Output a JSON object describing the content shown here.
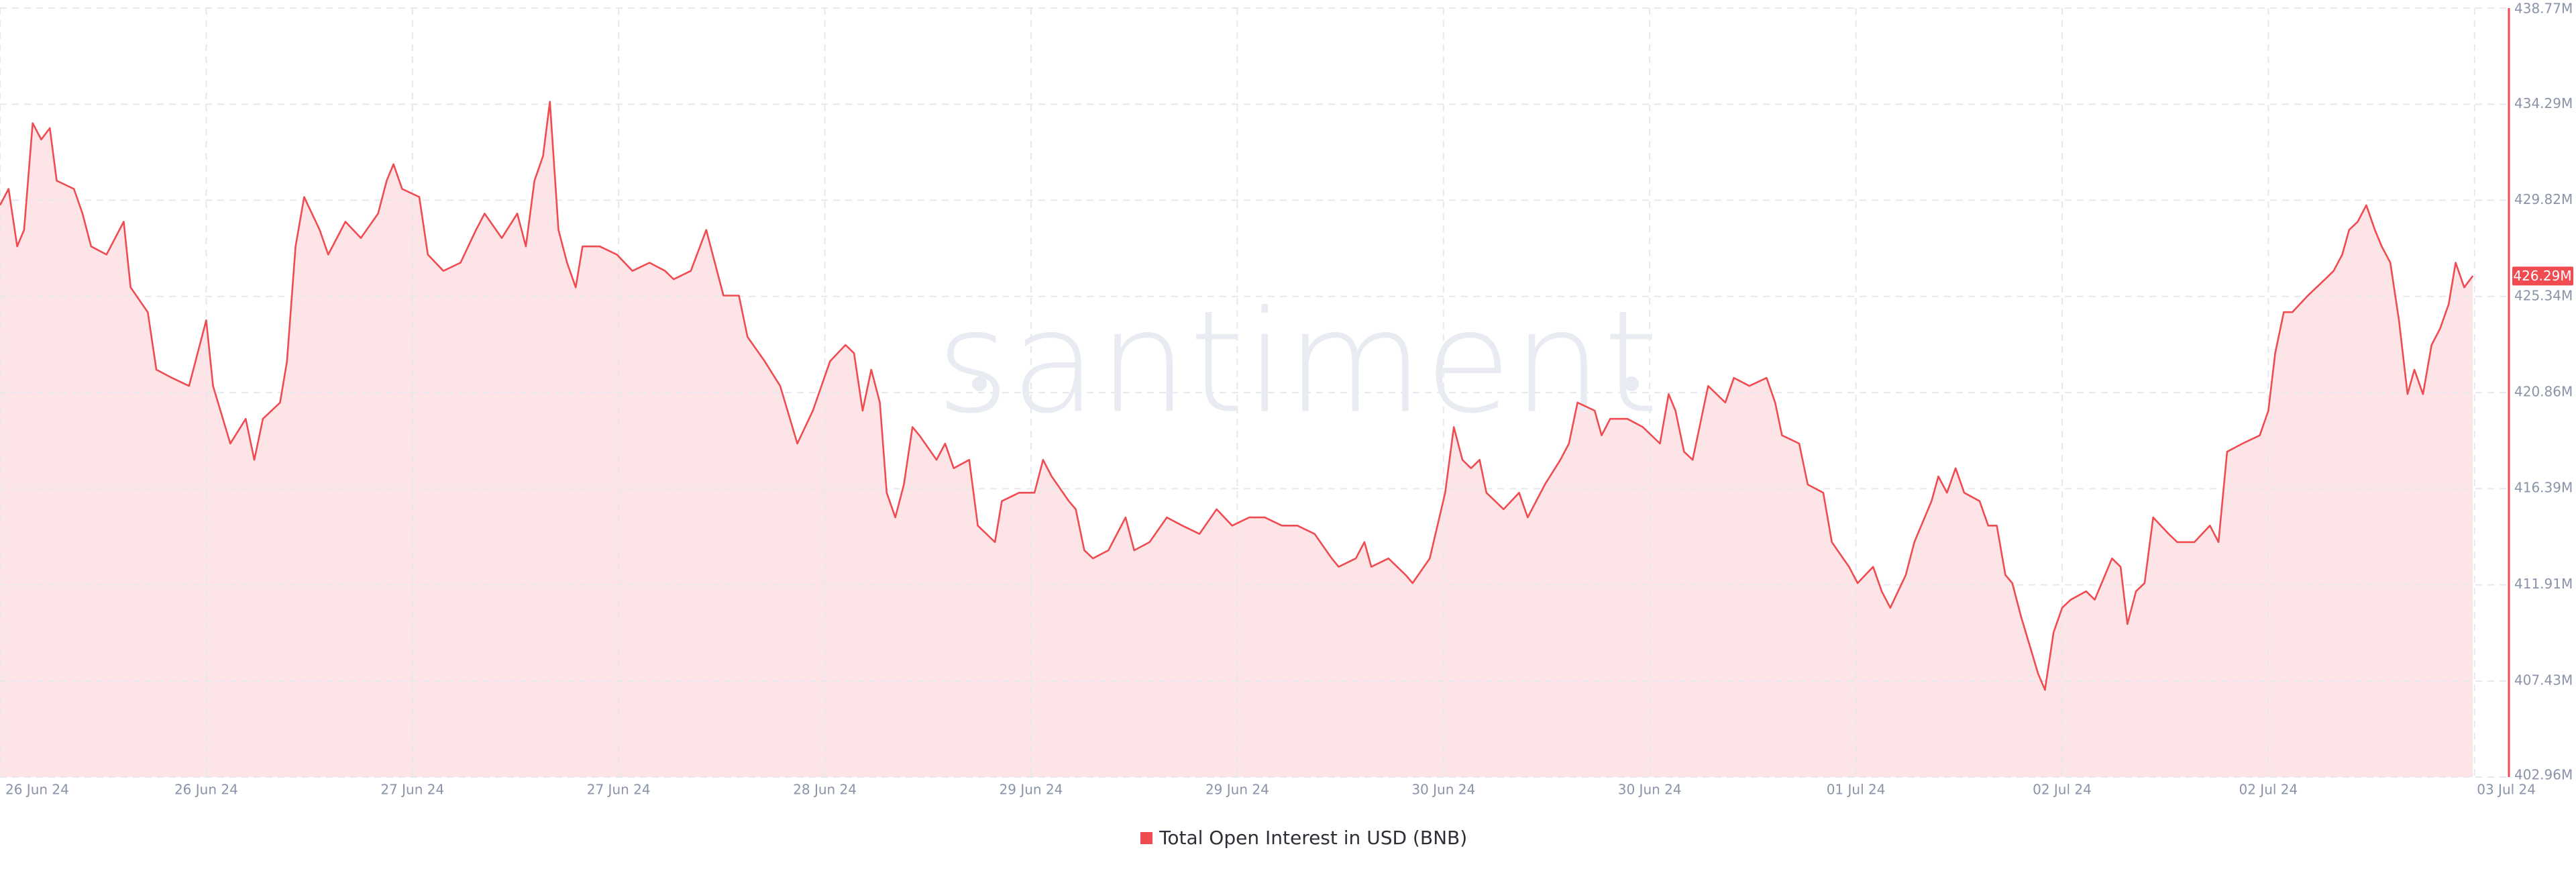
{
  "chart_data": {
    "type": "area",
    "watermark": "santiment",
    "x": [
      0,
      0.5,
      1.0,
      1.4,
      1.9,
      2.4,
      2.9,
      3.3,
      4.3,
      4.8,
      5.3,
      6.2,
      7.2,
      7.6,
      8.6,
      9.1,
      10.0,
      11.0,
      12.0,
      12.4,
      13.4,
      14.3,
      14.8,
      15.3,
      16.3,
      16.7,
      17.2,
      17.7,
      18.6,
      19.1,
      20.1,
      21.0,
      22.0,
      22.5,
      22.9,
      23.4,
      24.4,
      24.9,
      25.8,
      26.8,
      27.7,
      28.2,
      29.2,
      30.1,
      30.6,
      31.1,
      31.6,
      32.0,
      32.5,
      33.0,
      33.5,
      33.9,
      34.9,
      35.9,
      36.8,
      37.8,
      38.7,
      39.2,
      40.2,
      41.1,
      41.6,
      42.1,
      43.0,
      43.5,
      44.5,
      45.4,
      46.4,
      47.3,
      48.3,
      49.2,
      49.7,
      50.2,
      50.7,
      51.2,
      51.6,
      52.1,
      52.6,
      53.1,
      53.5,
      54.5,
      55.0,
      55.5,
      56.4,
      56.9,
      57.9,
      58.3,
      59.3,
      60.2,
      60.7,
      61.2,
      62.2,
      62.6,
      63.1,
      63.6,
      64.5,
      65.5,
      66.0,
      66.9,
      67.9,
      68.8,
      69.8,
      70.8,
      71.7,
      72.7,
      73.6,
      74.6,
      75.5,
      76.5,
      77.5,
      77.9,
      78.9,
      79.4,
      79.8,
      80.8,
      81.8,
      82.2,
      83.2,
      84.1,
      84.6,
      85.1,
      85.6,
      86.1,
      86.5,
      87.5,
      88.4,
      88.9,
      89.9,
      90.8,
      91.3,
      91.8,
      92.8,
      93.2,
      93.7,
      94.7,
      95.6,
      96.6,
      97.1,
      97.5,
      98.0,
      98.5,
      99.4,
      100.4,
      100.9,
      101.8,
      102.8,
      103.3,
      103.7,
      104.7,
      105.2,
      106.1,
      106.6,
      107.6,
      108.1,
      109.0,
      109.5,
      110.0,
      110.9,
      111.4,
      112.4,
      112.8,
      113.3,
      113.8,
      114.3,
      115.2,
      115.7,
      116.2,
      116.7,
      117.1,
      117.6,
      118.6,
      119.0,
      119.5,
      120.0,
      120.5,
      121.4,
      121.9,
      122.9,
      123.4,
      123.8,
      124.3,
      124.8,
      125.3,
      126.2,
      126.7,
      127.7,
      128.6,
      129.1,
      129.6,
      130.5,
      131.5,
      132.0,
      132.4,
      132.9,
      133.4,
      134.3,
      135.3,
      135.8,
      136.3,
      136.7,
      137.2,
      137.7,
      138.2,
      138.6,
      139.1,
      139.6,
      140.1,
      140.5,
      141.0,
      141.5,
      142.0,
      142.5,
      142.9,
      143.4,
      143.9
    ],
    "series": [
      {
        "name": "Total Open Interest in USD (BNB)",
        "color": "#ef4b51",
        "fill": "#fde4e6",
        "values": [
          429.59,
          430.35,
          427.67,
          428.44,
          433.41,
          432.65,
          433.18,
          430.73,
          430.35,
          429.2,
          427.67,
          427.29,
          428.82,
          425.76,
          424.61,
          421.93,
          421.55,
          421.17,
          424.23,
          421.17,
          418.49,
          419.64,
          417.73,
          419.64,
          420.4,
          422.32,
          427.67,
          429.97,
          428.44,
          427.29,
          428.82,
          428.06,
          429.2,
          430.73,
          431.5,
          430.35,
          429.97,
          427.29,
          426.53,
          426.91,
          428.44,
          429.2,
          428.06,
          429.2,
          427.67,
          430.73,
          431.88,
          434.41,
          428.44,
          426.91,
          425.76,
          427.67,
          427.67,
          427.29,
          426.53,
          426.91,
          426.53,
          426.14,
          426.53,
          428.44,
          426.91,
          425.38,
          425.38,
          423.46,
          422.32,
          421.17,
          418.49,
          420.02,
          422.32,
          423.08,
          422.7,
          420.02,
          421.93,
          420.4,
          416.2,
          415.05,
          416.58,
          419.26,
          418.87,
          417.73,
          418.49,
          417.34,
          417.73,
          414.67,
          413.9,
          415.81,
          416.2,
          416.2,
          417.73,
          416.96,
          415.81,
          415.43,
          413.52,
          413.14,
          413.52,
          415.05,
          413.52,
          413.9,
          415.05,
          414.67,
          414.28,
          415.43,
          414.67,
          415.05,
          415.05,
          414.67,
          414.67,
          414.28,
          413.14,
          412.75,
          413.14,
          413.9,
          412.75,
          413.14,
          412.37,
          411.99,
          413.14,
          416.2,
          419.26,
          417.73,
          417.34,
          417.73,
          416.2,
          415.43,
          416.2,
          415.05,
          416.58,
          417.73,
          418.49,
          420.4,
          420.02,
          418.87,
          419.64,
          419.64,
          419.26,
          418.49,
          420.79,
          420.02,
          418.11,
          417.73,
          421.17,
          420.4,
          421.55,
          421.17,
          421.55,
          420.4,
          418.87,
          418.49,
          416.58,
          416.2,
          413.9,
          412.75,
          411.99,
          412.75,
          411.61,
          410.84,
          412.37,
          413.9,
          415.81,
          416.96,
          416.2,
          417.34,
          416.2,
          415.81,
          414.67,
          414.67,
          412.37,
          411.99,
          410.46,
          407.78,
          407.02,
          409.69,
          410.84,
          411.22,
          411.61,
          411.22,
          413.14,
          412.75,
          410.08,
          411.61,
          411.99,
          415.05,
          414.28,
          413.9,
          413.9,
          414.67,
          413.9,
          418.11,
          418.49,
          418.87,
          420.02,
          422.7,
          424.61,
          424.61,
          425.38,
          426.14,
          426.53,
          427.29,
          428.44,
          428.82,
          429.59,
          428.44,
          427.67,
          426.91,
          424.23,
          420.79,
          421.93,
          420.79,
          423.08,
          423.85,
          424.99,
          426.91,
          425.76,
          426.3
        ]
      }
    ],
    "current_value": 426.29,
    "current_value_label": "426.29M",
    "xlim": [
      0,
      146
    ],
    "xticks": [
      {
        "value": 0,
        "label": "26 Jun 24"
      },
      {
        "value": 12,
        "label": "26 Jun 24"
      },
      {
        "value": 24,
        "label": "27 Jun 24"
      },
      {
        "value": 36,
        "label": "27 Jun 24"
      },
      {
        "value": 48,
        "label": "28 Jun 24"
      },
      {
        "value": 60,
        "label": "29 Jun 24"
      },
      {
        "value": 72,
        "label": "29 Jun 24"
      },
      {
        "value": 84,
        "label": "30 Jun 24"
      },
      {
        "value": 96,
        "label": "30 Jun 24"
      },
      {
        "value": 108,
        "label": "01 Jul 24"
      },
      {
        "value": 120,
        "label": "02 Jul 24"
      },
      {
        "value": 132,
        "label": "02 Jul 24"
      },
      {
        "value": 144,
        "label": "03 Jul 24"
      }
    ],
    "ylim": [
      402.96,
      438.77
    ],
    "yticks": [
      {
        "value": 402.96,
        "label": "402.96M"
      },
      {
        "value": 407.43,
        "label": "407.43M"
      },
      {
        "value": 411.91,
        "label": "411.91M"
      },
      {
        "value": 416.39,
        "label": "416.39M"
      },
      {
        "value": 420.86,
        "label": "420.86M"
      },
      {
        "value": 425.34,
        "label": "425.34M"
      },
      {
        "value": 429.82,
        "label": "429.82M"
      },
      {
        "value": 434.29,
        "label": "434.29M"
      },
      {
        "value": 438.77,
        "label": "438.77M"
      }
    ],
    "grid": true
  }
}
